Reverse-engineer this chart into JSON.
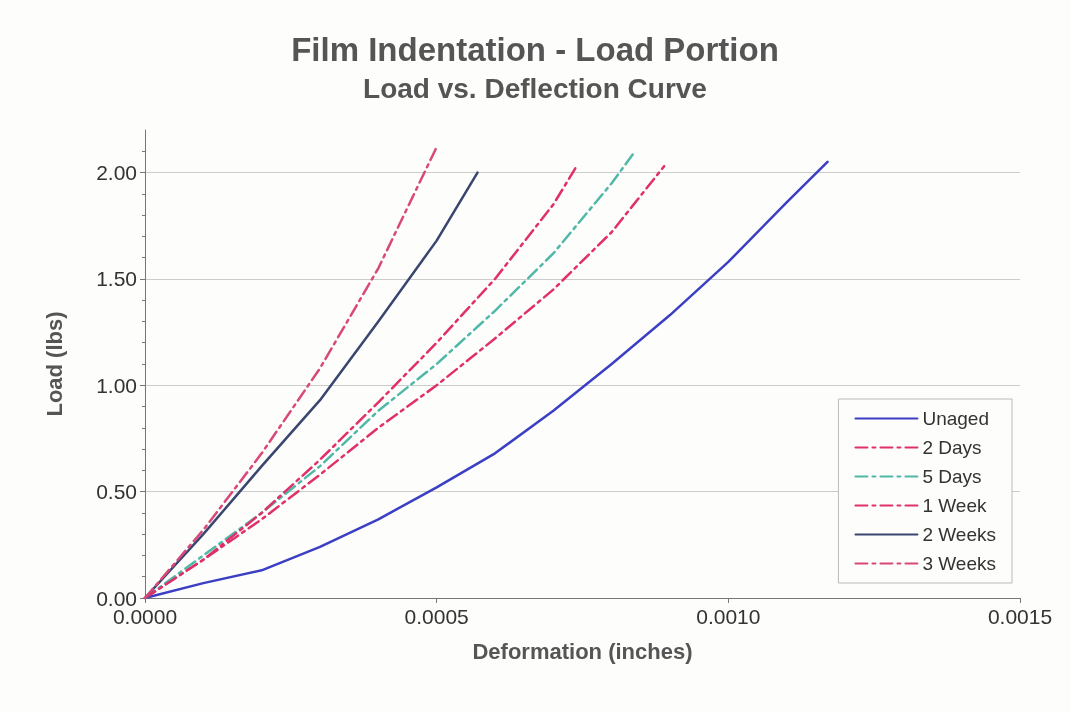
{
  "chart_data": {
    "type": "line",
    "title": "Film Indentation - Load Portion",
    "subtitle": "Load vs. Deflection Curve",
    "xlabel": "Deformation (inches)",
    "ylabel": "Load (lbs)",
    "xlim": [
      0,
      0.0015
    ],
    "xticks": [
      {
        "value": 0,
        "label": "0.0000"
      },
      {
        "value": 0.0005,
        "label": "0.0005"
      },
      {
        "value": 0.001,
        "label": "0.0010"
      },
      {
        "value": 0.0015,
        "label": "0.0015"
      }
    ],
    "ylim": [
      0,
      2.2
    ],
    "yticks": [
      {
        "value": 0,
        "label": "0.00"
      },
      {
        "value": 0.5,
        "label": "0.50"
      },
      {
        "value": 1,
        "label": "1.00"
      },
      {
        "value": 1.5,
        "label": "1.50"
      },
      {
        "value": 2,
        "label": "2.00"
      }
    ],
    "grid": "y",
    "legend": "bottom right",
    "marker": "none",
    "series": [
      {
        "name": "Unaged",
        "color": "#3b3fc4",
        "line_style": "solid",
        "x": [
          0,
          0.0001,
          0.0002,
          0.0003,
          0.0004,
          0.0005,
          0.0006,
          0.0007,
          0.0008,
          0.0009,
          0.001,
          0.0011,
          0.00117
        ],
        "values": [
          0,
          0.07,
          0.13,
          0.24,
          0.37,
          0.52,
          0.68,
          0.88,
          1.1,
          1.33,
          1.58,
          1.86,
          2.05
        ]
      },
      {
        "name": "2 Days",
        "color": "#e0306a",
        "line_style": "dashed",
        "x": [
          0,
          0.0001,
          0.0002,
          0.0003,
          0.0004,
          0.0005,
          0.0006,
          0.0007,
          0.0008,
          0.00089
        ],
        "values": [
          0,
          0.18,
          0.37,
          0.58,
          0.8,
          1.0,
          1.22,
          1.45,
          1.72,
          2.03
        ]
      },
      {
        "name": "5 Days",
        "color": "#4fb8a8",
        "line_style": "dashed",
        "x": [
          0,
          0.0002,
          0.0003,
          0.0004,
          0.0005,
          0.0006,
          0.0007,
          0.0008,
          0.00084
        ],
        "values": [
          0,
          0.4,
          0.62,
          0.88,
          1.1,
          1.35,
          1.62,
          1.95,
          2.1
        ]
      },
      {
        "name": "1 Week",
        "color": "#e0306a",
        "line_style": "dashed",
        "x": [
          0,
          0.0001,
          0.0002,
          0.0003,
          0.0004,
          0.0005,
          0.0006,
          0.0007,
          0.00074
        ],
        "values": [
          0,
          0.18,
          0.4,
          0.65,
          0.92,
          1.2,
          1.5,
          1.85,
          2.03
        ]
      },
      {
        "name": "2 Weeks",
        "color": "#3a4670",
        "line_style": "solid",
        "x": [
          0,
          0.0001,
          0.0002,
          0.0003,
          0.0004,
          0.0005,
          0.00057
        ],
        "values": [
          0,
          0.3,
          0.62,
          0.93,
          1.3,
          1.68,
          2.0
        ]
      },
      {
        "name": "3 Weeks",
        "color": "#d8487a",
        "line_style": "dashed",
        "x": [
          0,
          0.0001,
          0.0002,
          0.0003,
          0.0004,
          0.0005
        ],
        "values": [
          0,
          0.32,
          0.68,
          1.08,
          1.55,
          2.12
        ]
      }
    ]
  }
}
